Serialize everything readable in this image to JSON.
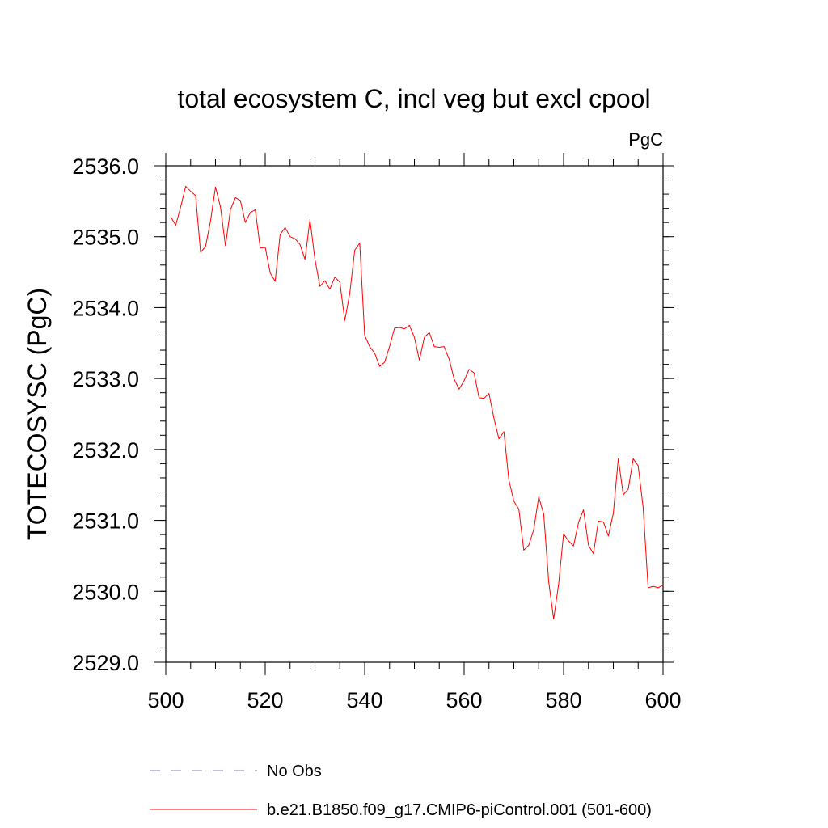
{
  "chart_data": {
    "type": "line",
    "title": "total ecosystem C, incl veg but excl cpool",
    "units_label": "PgC",
    "xlabel": "",
    "ylabel": "TOTECOSYSC  (PgC)",
    "xlim": [
      500,
      600
    ],
    "ylim": [
      2529.0,
      2536.0
    ],
    "x_ticks": [
      500,
      520,
      540,
      560,
      580,
      600
    ],
    "x_tick_labels": [
      "500",
      "520",
      "540",
      "560",
      "580",
      "600"
    ],
    "y_ticks": [
      2529.0,
      2530.0,
      2531.0,
      2532.0,
      2533.0,
      2534.0,
      2535.0,
      2536.0
    ],
    "y_tick_labels": [
      "2529.0",
      "2530.0",
      "2531.0",
      "2532.0",
      "2533.0",
      "2534.0",
      "2535.0",
      "2536.0"
    ],
    "legend_position": "bottom",
    "series": [
      {
        "name": "No Obs",
        "color": "#8080c0",
        "dash": "dashed",
        "values": []
      },
      {
        "name": "b.e21.B1850.f09_g17.CMIP6-piControl.001 (501-600)",
        "color": "#ff0000",
        "dash": "solid",
        "x": [
          501,
          502,
          503,
          504,
          505,
          506,
          507,
          508,
          509,
          510,
          511,
          512,
          513,
          514,
          515,
          516,
          517,
          518,
          519,
          520,
          521,
          522,
          523,
          524,
          525,
          526,
          527,
          528,
          529,
          530,
          531,
          532,
          533,
          534,
          535,
          536,
          537,
          538,
          539,
          540,
          541,
          542,
          543,
          544,
          545,
          546,
          547,
          548,
          549,
          550,
          551,
          552,
          553,
          554,
          555,
          556,
          557,
          558,
          559,
          560,
          561,
          562,
          563,
          564,
          565,
          566,
          567,
          568,
          569,
          570,
          571,
          572,
          573,
          574,
          575,
          576,
          577,
          578,
          579,
          580,
          581,
          582,
          583,
          584,
          585,
          586,
          587,
          588,
          589,
          590,
          591,
          592,
          593,
          594,
          595,
          596,
          597,
          598,
          599,
          600
        ],
        "values": [
          2535.28,
          2535.16,
          2535.42,
          2535.71,
          2535.64,
          2535.58,
          2534.78,
          2534.86,
          2535.22,
          2535.7,
          2535.42,
          2534.87,
          2535.38,
          2535.55,
          2535.51,
          2535.2,
          2535.34,
          2535.38,
          2534.84,
          2534.85,
          2534.49,
          2534.37,
          2535.03,
          2535.13,
          2535.0,
          2534.97,
          2534.89,
          2534.68,
          2535.24,
          2534.68,
          2534.3,
          2534.38,
          2534.26,
          2534.43,
          2534.36,
          2533.82,
          2534.2,
          2534.81,
          2534.91,
          2533.61,
          2533.45,
          2533.36,
          2533.17,
          2533.23,
          2533.45,
          2533.71,
          2533.72,
          2533.7,
          2533.75,
          2533.58,
          2533.26,
          2533.58,
          2533.65,
          2533.45,
          2533.44,
          2533.45,
          2533.27,
          2532.99,
          2532.85,
          2532.97,
          2533.13,
          2533.08,
          2532.73,
          2532.72,
          2532.79,
          2532.44,
          2532.15,
          2532.25,
          2531.57,
          2531.27,
          2531.16,
          2530.58,
          2530.65,
          2530.87,
          2531.33,
          2531.09,
          2530.14,
          2529.61,
          2530.1,
          2530.81,
          2530.71,
          2530.64,
          2530.97,
          2531.15,
          2530.65,
          2530.53,
          2530.99,
          2530.98,
          2530.78,
          2531.1,
          2531.87,
          2531.36,
          2531.44,
          2531.87,
          2531.77,
          2531.18,
          2530.05,
          2530.07,
          2530.05,
          2530.09
        ]
      }
    ]
  }
}
